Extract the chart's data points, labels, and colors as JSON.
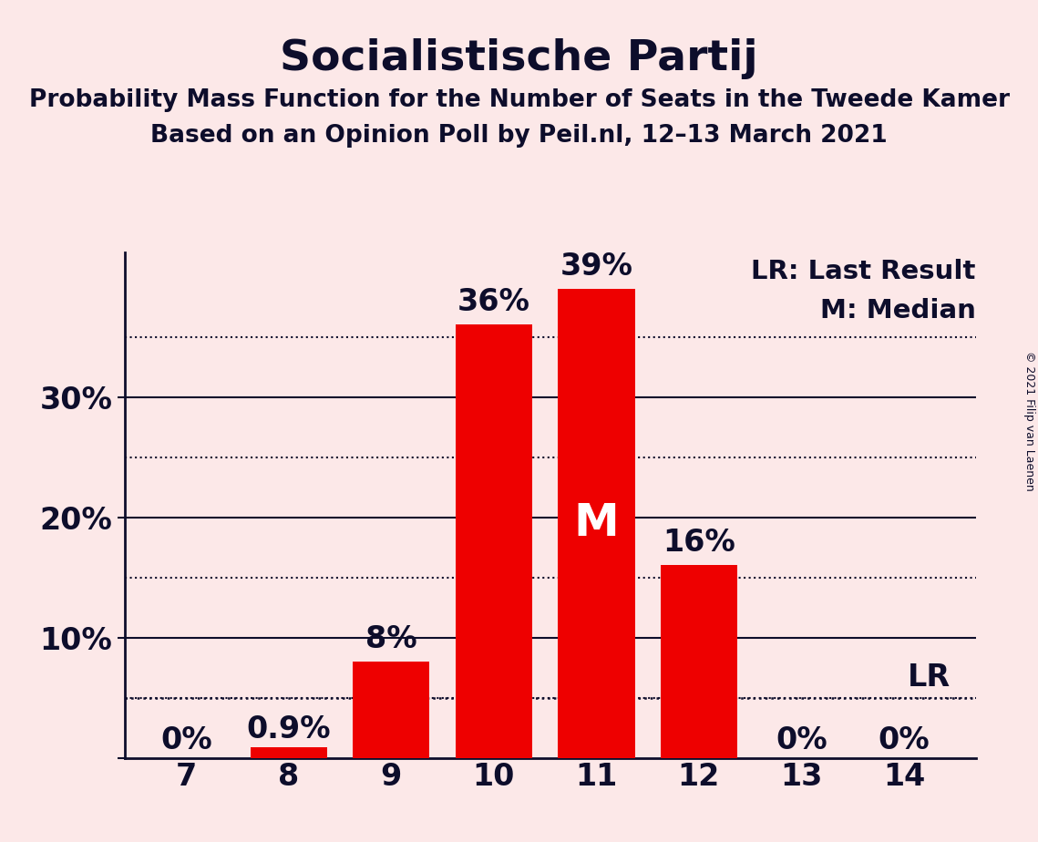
{
  "title": "Socialistische Partij",
  "subtitle1": "Probability Mass Function for the Number of Seats in the Tweede Kamer",
  "subtitle2": "Based on an Opinion Poll by Peil.nl, 12–13 March 2021",
  "copyright": "© 2021 Filip van Laenen",
  "categories": [
    7,
    8,
    9,
    10,
    11,
    12,
    13,
    14
  ],
  "values": [
    0.0,
    0.9,
    8.0,
    36.0,
    39.0,
    16.0,
    0.0,
    0.0
  ],
  "bar_color": "#ee0000",
  "background_color": "#fce8e8",
  "bar_labels": [
    "0%",
    "0.9%",
    "8%",
    "36%",
    "39%",
    "16%",
    "0%",
    "0%"
  ],
  "bar_label_color": "#0d0d2b",
  "median_seat": 11,
  "median_label": "M",
  "median_label_color": "#ffffff",
  "lr_value": 5.0,
  "lr_label": "LR",
  "lr_label_color": "#0d0d2b",
  "legend_lr": "LR: Last Result",
  "legend_m": "M: Median",
  "legend_color": "#0d0d2b",
  "yticks_major": [
    0,
    10,
    20,
    30
  ],
  "yticks_dotted": [
    5,
    15,
    25,
    35
  ],
  "ylim": [
    0,
    42
  ],
  "grid_color": "#0d0d2b",
  "axis_color": "#0d0d2b",
  "title_fontsize": 34,
  "subtitle_fontsize": 19,
  "tick_fontsize": 24,
  "label_fontsize": 24,
  "legend_fontsize": 21,
  "copyright_fontsize": 9
}
